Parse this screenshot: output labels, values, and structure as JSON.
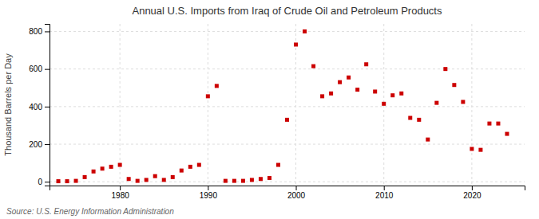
{
  "chart_data": {
    "type": "scatter",
    "title": "Annual U.S. Imports from Iraq of Crude Oil and Petroleum Products",
    "ylabel": "Thousand Barrels per Day",
    "source": "Source: U.S. Energy Information Administration",
    "color": "#cc0000",
    "marker": "square",
    "grid": true,
    "xlim": [
      1972,
      2026
    ],
    "ylim": [
      -20,
      840
    ],
    "xticks": [
      1980,
      1990,
      2000,
      2010,
      2020
    ],
    "yticks": [
      0,
      200,
      400,
      600,
      800
    ],
    "x": [
      1973,
      1974,
      1975,
      1976,
      1977,
      1978,
      1979,
      1980,
      1981,
      1982,
      1983,
      1984,
      1985,
      1986,
      1987,
      1988,
      1989,
      1990,
      1991,
      1992,
      1993,
      1994,
      1995,
      1996,
      1997,
      1998,
      1999,
      2000,
      2001,
      2002,
      2003,
      2004,
      2005,
      2006,
      2007,
      2008,
      2009,
      2010,
      2011,
      2012,
      2013,
      2014,
      2015,
      2016,
      2017,
      2018,
      2019,
      2020,
      2021,
      2022,
      2023,
      2024
    ],
    "values": [
      3,
      3,
      5,
      25,
      55,
      70,
      80,
      90,
      15,
      5,
      10,
      30,
      10,
      25,
      60,
      80,
      90,
      455,
      510,
      5,
      5,
      5,
      10,
      15,
      20,
      90,
      330,
      730,
      800,
      615,
      455,
      470,
      530,
      555,
      490,
      625,
      480,
      415,
      460,
      470,
      340,
      330,
      225,
      420,
      600,
      515,
      425,
      175,
      170,
      310,
      310,
      255
    ]
  }
}
